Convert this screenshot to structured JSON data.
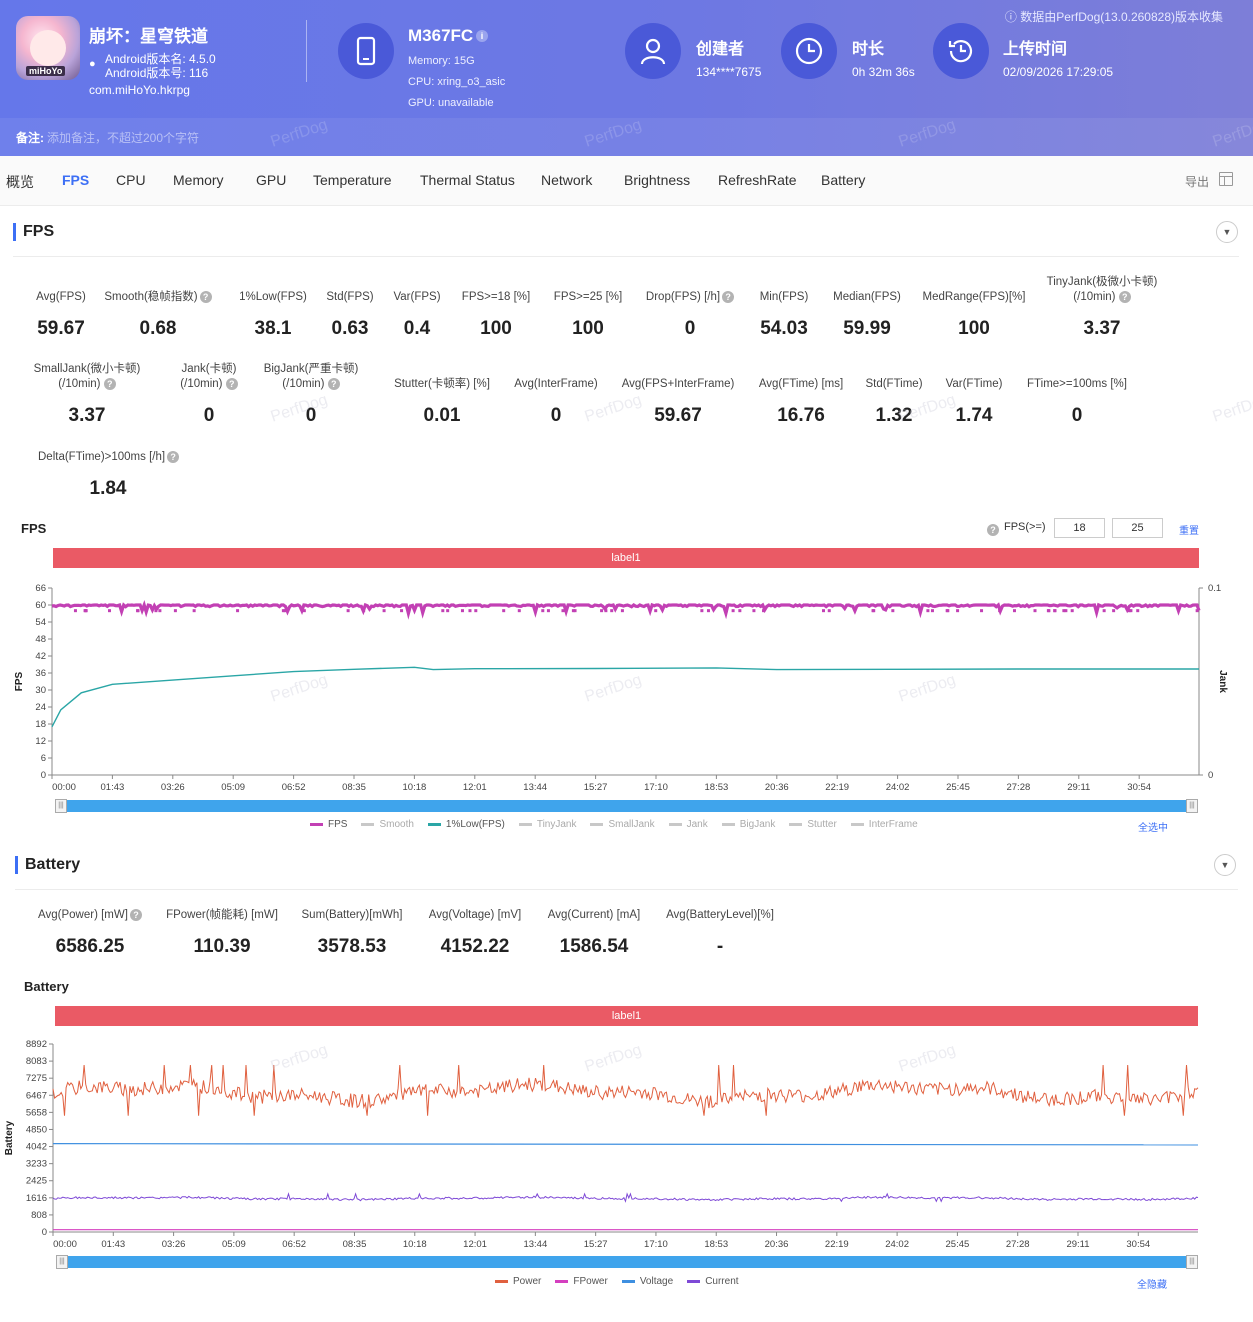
{
  "header": {
    "game_name": "崩坏：星穹铁道",
    "app_icon_tag": "miHoYo",
    "version_name": "Android版本名: 4.5.0",
    "version_code": "Android版本号: 116",
    "package": "com.miHoYo.hkrpg",
    "device_name": "M367FC",
    "memory": "Memory: 15G",
    "cpu": "CPU: xring_o3_asic",
    "gpu": "GPU: unavailable",
    "creator_label": "创建者",
    "creator_value": "134****7675",
    "duration_label": "时长",
    "duration_value": "0h 32m 36s",
    "upload_label": "上传时间",
    "upload_value": "02/09/2026 17:29:05",
    "collect_note": "数据由PerfDog(13.0.260828)版本收集",
    "remark_label": "备注:",
    "remark_placeholder": "添加备注，不超过200个字符",
    "watermark": "PerfDog"
  },
  "tabs": [
    "概览",
    "FPS",
    "CPU",
    "Memory",
    "GPU",
    "Temperature",
    "Thermal Status",
    "Network",
    "Brightness",
    "RefreshRate",
    "Battery"
  ],
  "active_tab": "FPS",
  "export_label": "导出",
  "fps_section": {
    "title": "FPS",
    "metrics_row1": [
      {
        "k": "Avg(FPS)",
        "v": "59.67"
      },
      {
        "k": "Smooth(稳帧指数)",
        "v": "0.68",
        "help": true
      },
      {
        "k": "1%Low(FPS)",
        "v": "38.1"
      },
      {
        "k": "Std(FPS)",
        "v": "0.63"
      },
      {
        "k": "Var(FPS)",
        "v": "0.4"
      },
      {
        "k": "FPS>=18 [%]",
        "v": "100"
      },
      {
        "k": "FPS>=25 [%]",
        "v": "100"
      },
      {
        "k": "Drop(FPS) [/h]",
        "v": "0",
        "help": true
      },
      {
        "k": "Min(FPS)",
        "v": "54.03"
      },
      {
        "k": "Median(FPS)",
        "v": "59.99"
      },
      {
        "k": "MedRange(FPS)[%]",
        "v": "100"
      },
      {
        "k": "TinyJank(极微小卡顿)",
        "k2": "(/10min)",
        "v": "3.37",
        "help": true
      }
    ],
    "metrics_row2": [
      {
        "k": "SmallJank(微小卡顿)",
        "k2": "(/10min)",
        "v": "3.37",
        "help": true
      },
      {
        "k": "Jank(卡顿)",
        "k2": "(/10min)",
        "v": "0",
        "help": true
      },
      {
        "k": "BigJank(严重卡顿)",
        "k2": "(/10min)",
        "v": "0",
        "help": true
      },
      {
        "k": "Stutter(卡顿率) [%]",
        "v": "0.01"
      },
      {
        "k": "Avg(InterFrame)",
        "v": "0"
      },
      {
        "k": "Avg(FPS+InterFrame)",
        "v": "59.67"
      },
      {
        "k": "Avg(FTime) [ms]",
        "v": "16.76"
      },
      {
        "k": "Std(FTime)",
        "v": "1.32"
      },
      {
        "k": "Var(FTime)",
        "v": "1.74"
      },
      {
        "k": "FTime>=100ms [%]",
        "v": "0"
      }
    ],
    "metrics_row3": [
      {
        "k": "Delta(FTime)>100ms [/h]",
        "v": "1.84",
        "help": true
      }
    ],
    "chart_title": "FPS",
    "threshold_label": "FPS(>=)",
    "threshold_1": "18",
    "threshold_2": "25",
    "threshold_link": "重置",
    "label_bar": "label1",
    "select_all": "全选中",
    "legend": [
      {
        "name": "FPS",
        "color": "#c240b4"
      },
      {
        "name": "Smooth",
        "color": "#c8c8c8"
      },
      {
        "name": "1%Low(FPS)",
        "color": "#2aa6a6"
      },
      {
        "name": "TinyJank",
        "color": "#c8c8c8"
      },
      {
        "name": "SmallJank",
        "color": "#c8c8c8"
      },
      {
        "name": "Jank",
        "color": "#c8c8c8"
      },
      {
        "name": "BigJank",
        "color": "#c8c8c8"
      },
      {
        "name": "Stutter",
        "color": "#c8c8c8"
      },
      {
        "name": "InterFrame",
        "color": "#c8c8c8"
      }
    ]
  },
  "battery_section": {
    "title": "Battery",
    "metrics": [
      {
        "k": "Avg(Power) [mW]",
        "v": "6586.25",
        "help": true
      },
      {
        "k": "FPower(帧能耗) [mW]",
        "v": "110.39"
      },
      {
        "k": "Sum(Battery)[mWh]",
        "v": "3578.53"
      },
      {
        "k": "Avg(Voltage) [mV]",
        "v": "4152.22"
      },
      {
        "k": "Avg(Current) [mA]",
        "v": "1586.54"
      },
      {
        "k": "Avg(BatteryLevel)[%]",
        "v": "-"
      }
    ],
    "chart_title": "Battery",
    "label_bar": "label1",
    "select_all": "全隐藏",
    "legend": [
      {
        "name": "Power",
        "color": "#e0603f"
      },
      {
        "name": "FPower",
        "color": "#d43fbf"
      },
      {
        "name": "Voltage",
        "color": "#3e8fe0"
      },
      {
        "name": "Current",
        "color": "#7e49d6"
      }
    ]
  },
  "chart_data": [
    {
      "type": "line",
      "title": "FPS",
      "ylabel": "FPS",
      "y2label": "Jank",
      "x_ticks": [
        "00:00",
        "01:43",
        "03:26",
        "05:09",
        "06:52",
        "08:35",
        "10:18",
        "12:01",
        "13:44",
        "15:27",
        "17:10",
        "18:53",
        "20:36",
        "22:19",
        "24:02",
        "25:45",
        "27:28",
        "29:11",
        "30:54"
      ],
      "y_ticks": [
        0,
        6,
        12,
        18,
        24,
        30,
        36,
        42,
        48,
        54,
        60,
        66
      ],
      "y2_ticks": [
        0,
        0.1
      ],
      "ylim": [
        0,
        66
      ],
      "series": [
        {
          "name": "FPS",
          "approx_level": 60,
          "dips_to": 57
        },
        {
          "name": "1%Low(FPS)",
          "x": [
            "00:00",
            "00:15",
            "00:50",
            "01:43",
            "03:26",
            "05:09",
            "06:52",
            "08:35",
            "10:18",
            "10:50",
            "12:01",
            "15:27",
            "18:53",
            "20:36",
            "24:02",
            "27:28",
            "30:54",
            "32:36"
          ],
          "values": [
            17,
            23,
            29,
            32,
            33.5,
            35,
            36.5,
            37.3,
            38,
            37.2,
            37.5,
            37.6,
            37.8,
            37.2,
            37.3,
            37.4,
            37.4,
            37.4
          ]
        }
      ]
    },
    {
      "type": "line",
      "title": "Battery",
      "ylabel": "Battery",
      "x_ticks": [
        "00:00",
        "01:43",
        "03:26",
        "05:09",
        "06:52",
        "08:35",
        "10:18",
        "12:01",
        "13:44",
        "15:27",
        "17:10",
        "18:53",
        "20:36",
        "22:19",
        "24:02",
        "25:45",
        "27:28",
        "29:11",
        "30:54"
      ],
      "y_ticks": [
        0,
        808,
        1616,
        2425,
        3233,
        4042,
        4850,
        5658,
        6467,
        7275,
        8083,
        8892
      ],
      "ylim": [
        0,
        8892
      ],
      "series": [
        {
          "name": "Power",
          "approx_mean": 6586,
          "range": [
            5500,
            7900
          ]
        },
        {
          "name": "FPower",
          "approx_mean": 110
        },
        {
          "name": "Voltage",
          "x": [
            "00:00",
            "32:36"
          ],
          "values": [
            4180,
            4120
          ]
        },
        {
          "name": "Current",
          "approx_mean": 1586,
          "range": [
            1450,
            1800
          ]
        }
      ]
    }
  ]
}
